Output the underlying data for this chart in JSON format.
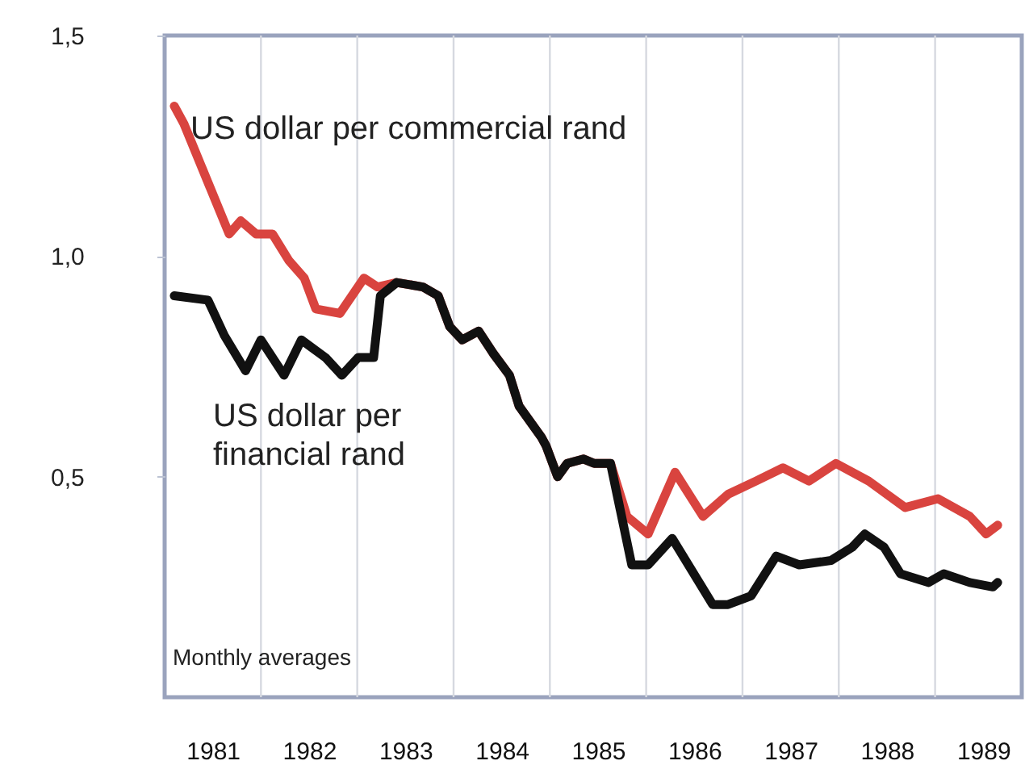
{
  "chart_data": {
    "type": "line",
    "annotations": [
      "Monthly averages"
    ],
    "xlim": [
      1981,
      1989.9
    ],
    "xticks": [
      {
        "value": 1981.5,
        "label": "1981"
      },
      {
        "value": 1982,
        "label": null
      },
      {
        "value": 1982.5,
        "label": "1982"
      },
      {
        "value": 1983,
        "label": null
      },
      {
        "value": 1983.5,
        "label": "1983"
      },
      {
        "value": 1984,
        "label": null
      },
      {
        "value": 1984.5,
        "label": "1984"
      },
      {
        "value": 1985,
        "label": null
      },
      {
        "value": 1985.5,
        "label": "1985"
      },
      {
        "value": 1986,
        "label": null
      },
      {
        "value": 1986.5,
        "label": "1986"
      },
      {
        "value": 1987,
        "label": null
      },
      {
        "value": 1987.5,
        "label": "1987"
      },
      {
        "value": 1988,
        "label": null
      },
      {
        "value": 1988.5,
        "label": "1988"
      },
      {
        "value": 1989,
        "label": null
      },
      {
        "value": 1989.5,
        "label": "1989"
      }
    ],
    "ylim": [
      0,
      1.5
    ],
    "yticks": [
      {
        "value": 0.5,
        "label": "0,5"
      },
      {
        "value": 1.0,
        "label": "1,0"
      },
      {
        "value": 1.5,
        "label": "1,5"
      }
    ],
    "grid": "x",
    "line_style": "solid",
    "series": [
      {
        "name": "US dollar per commercial rand",
        "color": "#d9443f",
        "x": [
          1981.1,
          1981.2,
          1981.67,
          1981.79,
          1981.95,
          1982.12,
          1982.29,
          1982.45,
          1982.57,
          1982.82,
          1983.07,
          1983.21,
          1983.41,
          1983.68,
          1983.84,
          1983.96,
          1984.09,
          1984.26,
          1984.41,
          1984.58,
          1984.68,
          1984.91,
          1984.96,
          1985.08,
          1985.18,
          1985.35,
          1985.46,
          1985.63,
          1985.8,
          1986.02,
          1986.3,
          1986.59,
          1986.85,
          1987.14,
          1987.42,
          1987.69,
          1987.97,
          1988.31,
          1988.69,
          1989.03,
          1989.36,
          1989.53,
          1989.65
        ],
        "values": [
          1.34,
          1.3,
          1.05,
          1.08,
          1.05,
          1.05,
          0.99,
          0.95,
          0.88,
          0.87,
          0.95,
          0.93,
          0.94,
          0.93,
          0.91,
          0.84,
          0.81,
          0.83,
          0.78,
          0.73,
          0.66,
          0.59,
          0.57,
          0.5,
          0.53,
          0.54,
          0.53,
          0.53,
          0.41,
          0.37,
          0.51,
          0.41,
          0.46,
          0.49,
          0.52,
          0.49,
          0.53,
          0.49,
          0.43,
          0.45,
          0.41,
          0.37,
          0.39
        ]
      },
      {
        "name": "US dollar per financial rand",
        "color": "#111111",
        "x": [
          1981.1,
          1981.45,
          1981.62,
          1981.84,
          1982.0,
          1982.24,
          1982.42,
          1982.67,
          1982.84,
          1983.01,
          1983.17,
          1983.24,
          1983.41,
          1983.68,
          1983.84,
          1983.96,
          1984.09,
          1984.26,
          1984.41,
          1984.58,
          1984.68,
          1984.91,
          1984.96,
          1985.08,
          1985.18,
          1985.35,
          1985.46,
          1985.63,
          1985.85,
          1986.02,
          1986.27,
          1986.69,
          1986.85,
          1987.09,
          1987.35,
          1987.59,
          1987.92,
          1988.14,
          1988.27,
          1988.47,
          1988.64,
          1988.93,
          1989.09,
          1989.36,
          1989.6,
          1989.65
        ],
        "values": [
          0.91,
          0.9,
          0.82,
          0.74,
          0.81,
          0.73,
          0.81,
          0.77,
          0.73,
          0.77,
          0.77,
          0.91,
          0.94,
          0.93,
          0.91,
          0.84,
          0.81,
          0.83,
          0.78,
          0.73,
          0.66,
          0.59,
          0.57,
          0.5,
          0.53,
          0.54,
          0.53,
          0.53,
          0.3,
          0.3,
          0.36,
          0.21,
          0.21,
          0.23,
          0.32,
          0.3,
          0.31,
          0.34,
          0.37,
          0.34,
          0.28,
          0.26,
          0.28,
          0.26,
          0.25,
          0.26
        ]
      }
    ]
  }
}
